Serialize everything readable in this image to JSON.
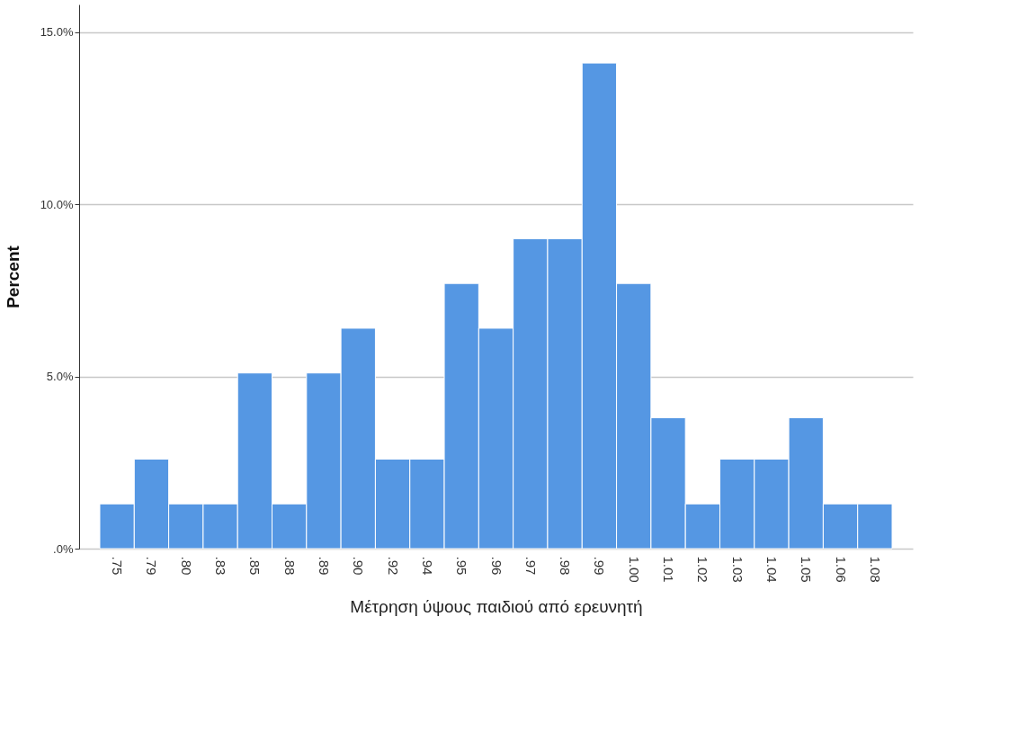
{
  "chart_data": {
    "type": "bar",
    "xlabel": "Μέτρηση ύψους παιδιού από ερευνητή",
    "ylabel": "Percent",
    "categories": [
      ".75",
      ".79",
      ".80",
      ".83",
      ".85",
      ".88",
      ".89",
      ".90",
      ".92",
      ".94",
      ".95",
      ".96",
      ".97",
      ".98",
      ".99",
      "1.00",
      "1.01",
      "1.02",
      "1.03",
      "1.04",
      "1.05",
      "1.06",
      "1.08"
    ],
    "values": [
      1.3,
      2.6,
      1.3,
      1.3,
      5.1,
      1.3,
      5.1,
      6.4,
      2.6,
      2.6,
      7.7,
      6.4,
      9.0,
      9.0,
      14.1,
      7.7,
      3.8,
      1.3,
      2.6,
      2.6,
      3.8,
      1.3,
      1.3
    ],
    "color": "#5597e3",
    "ylim": [
      0,
      15.8
    ],
    "yticks": [
      {
        "value": 0,
        "label": ".0%"
      },
      {
        "value": 5,
        "label": "5.0%"
      },
      {
        "value": 10,
        "label": "10.0%"
      },
      {
        "value": 15,
        "label": "15.0%"
      }
    ],
    "grid": "y"
  }
}
